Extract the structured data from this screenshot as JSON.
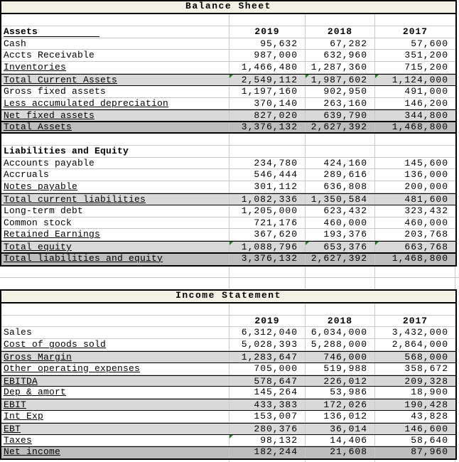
{
  "colors": {
    "row_shade_light": "#d9d9d9",
    "row_shade_dark": "#bdbdbd",
    "title_background": "#f3f2e4",
    "gridline": "#c9c9c9",
    "table_border": "#000000",
    "error_triangle_green": "#1b7e1b",
    "text": "#000000",
    "background": "#ffffff"
  },
  "icons": {
    "green_corner_triangle": "excel-cell-corner-marker (css triangle)"
  },
  "balance_sheet": {
    "title": "Balance Sheet",
    "col_headers": [
      "2019",
      "2018",
      "2017"
    ],
    "rows": [
      {
        "type": "blank"
      },
      {
        "type": "header",
        "label": "Assets",
        "bar": true,
        "values": [
          "2019",
          "2018",
          "2017"
        ]
      },
      {
        "type": "item",
        "label": "Cash",
        "values": [
          "95,632",
          "67,282",
          "57,600"
        ]
      },
      {
        "type": "item",
        "label": "Accts Receivable",
        "values": [
          "987,000",
          "632,960",
          "351,200"
        ]
      },
      {
        "type": "item",
        "label": "Inventories",
        "underline": true,
        "values": [
          "1,466,480",
          "1,287,360",
          "715,200"
        ]
      },
      {
        "type": "subtotal",
        "label": "Total Current Assets",
        "underline": true,
        "triangles": [
          1,
          1,
          1
        ],
        "values": [
          "2,549,112",
          "1,987,602",
          "1,124,000"
        ]
      },
      {
        "type": "item",
        "label": "Gross fixed assets",
        "values": [
          "1,197,160",
          "902,950",
          "491,000"
        ]
      },
      {
        "type": "item",
        "label": "Less accumulated depreciation",
        "underline": true,
        "values": [
          "370,140",
          "263,160",
          "146,200"
        ]
      },
      {
        "type": "subtotal",
        "label": "Net fixed assets",
        "underline": true,
        "values": [
          "827,020",
          "639,790",
          "344,800"
        ]
      },
      {
        "type": "total",
        "label": "Total Assets",
        "underline": true,
        "values": [
          "3,376,132",
          "2,627,392",
          "1,468,800"
        ]
      },
      {
        "type": "blank"
      },
      {
        "type": "header2",
        "label": "Liabilities and Equity"
      },
      {
        "type": "item",
        "label": "Accounts payable",
        "values": [
          "234,780",
          "424,160",
          "145,600"
        ]
      },
      {
        "type": "item",
        "label": "Accruals",
        "values": [
          "546,444",
          "289,616",
          "136,000"
        ]
      },
      {
        "type": "item",
        "label": "Notes payable",
        "underline": true,
        "values": [
          "301,112",
          "636,808",
          "200,000"
        ]
      },
      {
        "type": "subtotal",
        "label": "Total current liabilities",
        "underline": true,
        "values": [
          "1,082,336",
          "1,350,584",
          "481,600"
        ]
      },
      {
        "type": "item",
        "label": "Long-term debt",
        "values": [
          "1,205,000",
          "623,432",
          "323,432"
        ]
      },
      {
        "type": "item",
        "label": "Common stock",
        "values": [
          "721,176",
          "460,000",
          "460,000"
        ]
      },
      {
        "type": "item",
        "label": "Retained Earnings",
        "underline": true,
        "values": [
          "367,620",
          "193,376",
          "203,768"
        ]
      },
      {
        "type": "subtotal",
        "label": "Total equity",
        "underline": true,
        "triangles": [
          1,
          1,
          1
        ],
        "values": [
          "1,088,796",
          "653,376",
          "663,768"
        ]
      },
      {
        "type": "total",
        "label": "Total liabilities and equity",
        "underline": true,
        "values": [
          "3,376,132",
          "2,627,392",
          "1,468,800"
        ]
      }
    ]
  },
  "income_statement": {
    "title": "Income Statement",
    "col_headers": [
      "2019",
      "2018",
      "2017"
    ],
    "rows": [
      {
        "type": "blank"
      },
      {
        "type": "header",
        "label": "",
        "values": [
          "2019",
          "2018",
          "2017"
        ]
      },
      {
        "type": "item",
        "label": "Sales",
        "values": [
          "6,312,040",
          "6,034,000",
          "3,432,000"
        ]
      },
      {
        "type": "item",
        "label": "Cost of goods sold",
        "underline": true,
        "values": [
          "5,028,393",
          "5,288,000",
          "2,864,000"
        ]
      },
      {
        "type": "subtotal",
        "label": "Gross Margin",
        "underline": true,
        "values": [
          "1,283,647",
          "746,000",
          "568,000"
        ]
      },
      {
        "type": "item",
        "label": "Other operating expenses",
        "underline": true,
        "values": [
          "705,000",
          "519,988",
          "358,672"
        ]
      },
      {
        "type": "subtotal",
        "label": "EBITDA",
        "underline": true,
        "values": [
          "578,647",
          "226,012",
          "209,328"
        ]
      },
      {
        "type": "item",
        "label": "Dep & amort",
        "underline": true,
        "values": [
          "145,264",
          "53,986",
          "18,900"
        ]
      },
      {
        "type": "subtotal",
        "label": "EBIT",
        "underline": true,
        "values": [
          "433,383",
          "172,026",
          "190,428"
        ]
      },
      {
        "type": "item",
        "label": "Int Exp",
        "underline": true,
        "values": [
          "153,007",
          "136,012",
          "43,828"
        ]
      },
      {
        "type": "subtotal",
        "label": "EBT",
        "underline": true,
        "values": [
          "280,376",
          "36,014",
          "146,600"
        ]
      },
      {
        "type": "item",
        "label": "Taxes",
        "underline": true,
        "triangles": [
          1,
          0,
          0
        ],
        "values": [
          "98,132",
          "14,406",
          "58,640"
        ]
      },
      {
        "type": "total",
        "label": "Net income",
        "underline": true,
        "values": [
          "182,244",
          "21,608",
          "87,960"
        ]
      }
    ]
  }
}
